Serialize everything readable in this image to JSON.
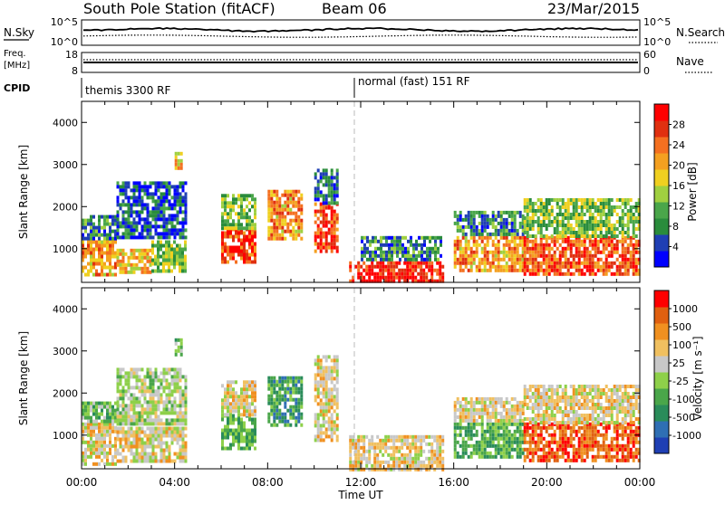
{
  "header": {
    "station": "South Pole Station (fitACF)",
    "beam": "Beam 06",
    "date": "23/Mar/2015"
  },
  "noise_panel": {
    "left_label": "N.Sky",
    "left_ticks": [
      "10^5",
      "10^0"
    ],
    "right_ticks": [
      "10^5",
      "10^0"
    ],
    "right_label": "N.Search",
    "right_line_style": "dotted"
  },
  "freq_panel": {
    "left_label_line1": "Freq.",
    "left_label_line2": "[MHz]",
    "left_ticks": [
      "18",
      "8"
    ],
    "right_ticks": [
      "60",
      "0"
    ],
    "right_label": "Nave",
    "right_line_style": "dotted"
  },
  "cpid_panel": {
    "label": "CPID",
    "modes": [
      {
        "name": "themis 3300 RF",
        "start_hour": 0
      },
      {
        "name": "normal (fast) 151 RF",
        "start_hour": 12
      }
    ]
  },
  "x_axis": {
    "label": "Time UT",
    "ticks": [
      "00:00",
      "04:00",
      "08:00",
      "12:00",
      "16:00",
      "20:00",
      "00:00"
    ],
    "range_hours": [
      0,
      24
    ]
  },
  "colors": {
    "power_scale": [
      "#0000ff",
      "#1f3fb4",
      "#2a8c3c",
      "#4aa64a",
      "#a0d040",
      "#f0d020",
      "#f4a020",
      "#f47020",
      "#e03010",
      "#ff0000"
    ],
    "velocity_scale": [
      "#1f3fb4",
      "#2f6fb4",
      "#2a8c5a",
      "#4aa64a",
      "#8ed04a",
      "#c8c8c8",
      "#f0c060",
      "#f09020",
      "#e06010",
      "#ff0000"
    ]
  },
  "chart_data": [
    {
      "type": "heatmap",
      "title": "",
      "xlabel": "Time UT",
      "ylabel": "Slant Range [km]",
      "ylim": [
        200,
        4500
      ],
      "y_ticks": [
        "1000",
        "2000",
        "3000",
        "4000"
      ],
      "colorbar": {
        "label": "Power [dB]",
        "ticks": [
          "28",
          "24",
          "20",
          "16",
          "12",
          "8",
          "4"
        ],
        "range": [
          0,
          30
        ]
      },
      "regions": [
        {
          "t0": 0.0,
          "t1": 1.5,
          "r0": 350,
          "r1": 1200,
          "value": 20
        },
        {
          "t0": 0.0,
          "t1": 1.5,
          "r0": 1200,
          "r1": 1800,
          "value": 8
        },
        {
          "t0": 1.5,
          "t1": 3.0,
          "r0": 400,
          "r1": 1000,
          "value": 18
        },
        {
          "t0": 1.5,
          "t1": 4.5,
          "r0": 1300,
          "r1": 2600,
          "value": 5
        },
        {
          "t0": 3.0,
          "t1": 4.5,
          "r0": 500,
          "r1": 1200,
          "value": 12
        },
        {
          "t0": 4.0,
          "t1": 4.3,
          "r0": 2900,
          "r1": 3300,
          "value": 18
        },
        {
          "t0": 6.0,
          "t1": 7.5,
          "r0": 700,
          "r1": 1500,
          "value": 26
        },
        {
          "t0": 6.0,
          "t1": 7.5,
          "r0": 1500,
          "r1": 2300,
          "value": 12
        },
        {
          "t0": 8.0,
          "t1": 9.5,
          "r0": 1200,
          "r1": 2400,
          "value": 20
        },
        {
          "t0": 10.0,
          "t1": 11.0,
          "r0": 900,
          "r1": 2100,
          "value": 24
        },
        {
          "t0": 10.0,
          "t1": 11.0,
          "r0": 2100,
          "r1": 2900,
          "value": 6
        },
        {
          "t0": 11.5,
          "t1": 15.5,
          "r0": 200,
          "r1": 700,
          "value": 27
        },
        {
          "t0": 12.0,
          "t1": 15.5,
          "r0": 700,
          "r1": 1300,
          "value": 8
        },
        {
          "t0": 16.0,
          "t1": 19.0,
          "r0": 500,
          "r1": 1300,
          "value": 20
        },
        {
          "t0": 16.0,
          "t1": 19.0,
          "r0": 1300,
          "r1": 1900,
          "value": 8
        },
        {
          "t0": 19.0,
          "t1": 24.0,
          "r0": 400,
          "r1": 1300,
          "value": 24
        },
        {
          "t0": 19.0,
          "t1": 24.0,
          "r0": 1300,
          "r1": 2200,
          "value": 12
        }
      ]
    },
    {
      "type": "heatmap",
      "title": "",
      "xlabel": "Time UT",
      "ylabel": "Slant Range [km]",
      "ylim": [
        200,
        4500
      ],
      "y_ticks": [
        "1000",
        "2000",
        "3000",
        "4000"
      ],
      "colorbar": {
        "label": "Velocity [m s⁻¹]",
        "ticks": [
          "1000",
          "500",
          "100",
          "25",
          "-25",
          "-100",
          "-500",
          "-1000"
        ],
        "range": [
          -1000,
          1000
        ]
      },
      "regions": [
        {
          "t0": 0.0,
          "t1": 1.5,
          "r0": 350,
          "r1": 1300,
          "value": 200
        },
        {
          "t0": 0.0,
          "t1": 1.5,
          "r0": 1300,
          "r1": 1800,
          "value": -200
        },
        {
          "t0": 1.5,
          "t1": 4.5,
          "r0": 400,
          "r1": 1200,
          "value": 200
        },
        {
          "t0": 1.5,
          "t1": 4.5,
          "r0": 1300,
          "r1": 2600,
          "value": 0
        },
        {
          "t0": 4.0,
          "t1": 4.3,
          "r0": 2900,
          "r1": 3300,
          "value": -200
        },
        {
          "t0": 6.0,
          "t1": 7.5,
          "r0": 700,
          "r1": 1500,
          "value": -300
        },
        {
          "t0": 6.0,
          "t1": 7.5,
          "r0": 1500,
          "r1": 2300,
          "value": 200
        },
        {
          "t0": 8.0,
          "t1": 9.5,
          "r0": 1200,
          "r1": 2400,
          "value": -400
        },
        {
          "t0": 10.0,
          "t1": 11.0,
          "r0": 900,
          "r1": 2900,
          "value": 200
        },
        {
          "t0": 11.5,
          "t1": 15.5,
          "r0": 200,
          "r1": 1000,
          "value": 200
        },
        {
          "t0": 16.0,
          "t1": 19.0,
          "r0": 500,
          "r1": 1300,
          "value": -300
        },
        {
          "t0": 16.0,
          "t1": 19.0,
          "r0": 1300,
          "r1": 1900,
          "value": 200
        },
        {
          "t0": 19.0,
          "t1": 24.0,
          "r0": 400,
          "r1": 1300,
          "value": 700
        },
        {
          "t0": 19.0,
          "t1": 24.0,
          "r0": 1300,
          "r1": 2200,
          "value": 200
        }
      ]
    }
  ]
}
